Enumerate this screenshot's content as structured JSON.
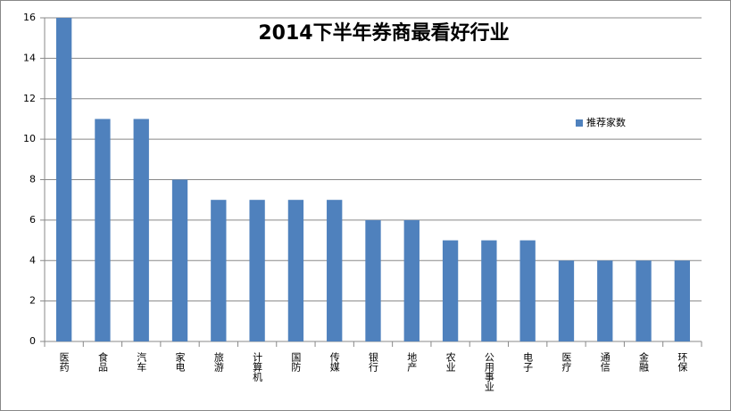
{
  "chart_data": {
    "type": "bar",
    "title": "2014下半年券商最看好行业",
    "categories": [
      "医药",
      "食品",
      "汽车",
      "家电",
      "旅游",
      "计算机",
      "国防",
      "传媒",
      "银行",
      "地产",
      "农业",
      "公用事业",
      "电子",
      "医疗",
      "通信",
      "金融",
      "环保"
    ],
    "series": [
      {
        "name": "推荐家数",
        "color": "#4f81bd",
        "values": [
          16,
          11,
          11,
          8,
          7,
          7,
          7,
          7,
          6,
          6,
          5,
          5,
          5,
          4,
          4,
          4,
          4
        ]
      }
    ],
    "ylim": [
      0,
      16
    ],
    "yticks": [
      0,
      2,
      4,
      6,
      8,
      10,
      12,
      14,
      16
    ],
    "grid": true,
    "legend": "right"
  }
}
